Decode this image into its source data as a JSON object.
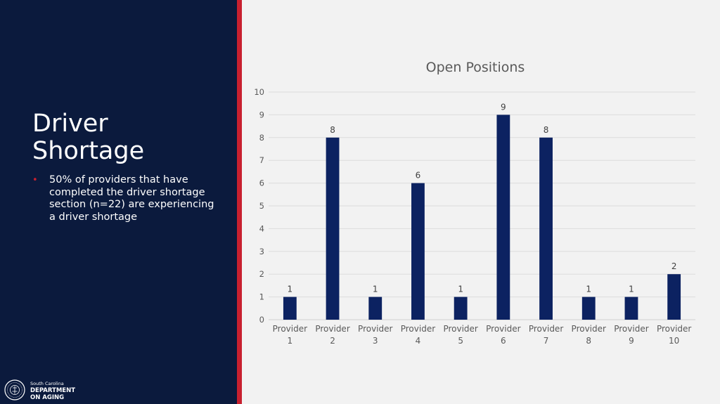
{
  "slide": {
    "title": "Driver Shortage",
    "bullets": [
      "50% of providers that have completed the driver shortage section (n=22) are experiencing a driver shortage"
    ]
  },
  "logo": {
    "state": "South Carolina",
    "line1": "DEPARTMENT",
    "line2": "ON AGING"
  },
  "colors": {
    "panel": "#0b1a3d",
    "accent_red": "#c8202f",
    "bar": "#0c2261"
  },
  "chart_data": {
    "type": "bar",
    "title": "Open Positions",
    "categories": [
      [
        "Provider",
        "1"
      ],
      [
        "Provider",
        "2"
      ],
      [
        "Provider",
        "3"
      ],
      [
        "Provider",
        "4"
      ],
      [
        "Provider",
        "5"
      ],
      [
        "Provider",
        "6"
      ],
      [
        "Provider",
        "7"
      ],
      [
        "Provider",
        "8"
      ],
      [
        "Provider",
        "9"
      ],
      [
        "Provider",
        "10"
      ]
    ],
    "values": [
      1,
      8,
      1,
      6,
      1,
      9,
      8,
      1,
      1,
      2
    ],
    "data_labels": true,
    "ylim": [
      0,
      10
    ],
    "yticks": [
      0,
      1,
      2,
      3,
      4,
      5,
      6,
      7,
      8,
      9,
      10
    ],
    "grid": true,
    "legend": "none"
  }
}
